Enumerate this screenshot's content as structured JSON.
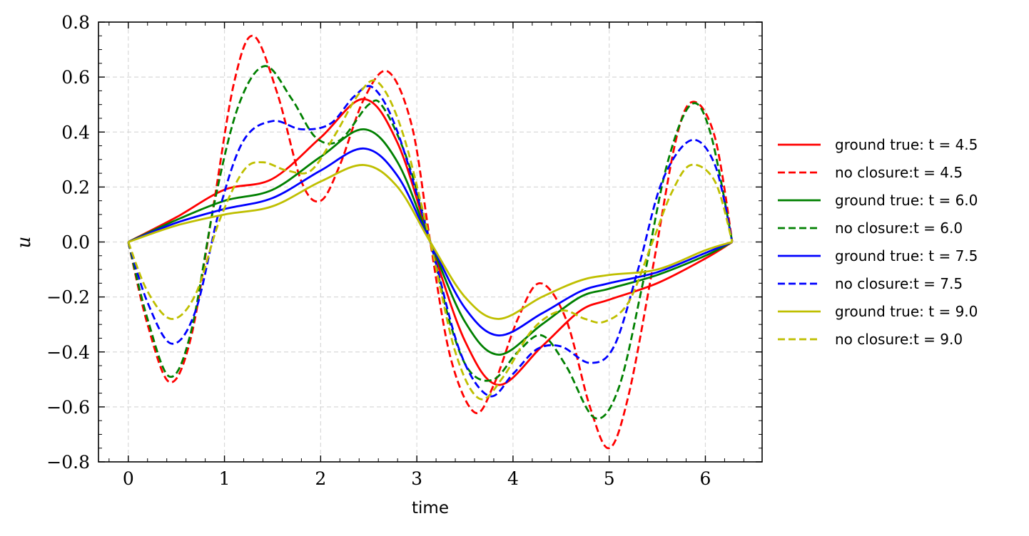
{
  "chart_data": {
    "type": "line",
    "xlabel": "time",
    "ylabel": "u",
    "xlim": [
      -0.31,
      6.59
    ],
    "ylim": [
      -0.8,
      0.8
    ],
    "xticks": [
      0,
      1,
      2,
      3,
      4,
      5,
      6
    ],
    "xtick_labels": [
      "0",
      "1",
      "2",
      "3",
      "4",
      "5",
      "6"
    ],
    "yticks": [
      -0.8,
      -0.6,
      -0.4,
      -0.2,
      0.0,
      0.2,
      0.4,
      0.6,
      0.8
    ],
    "ytick_labels": [
      "−0.8",
      "−0.6",
      "−0.4",
      "−0.2",
      "0.0",
      "0.2",
      "0.4",
      "0.6",
      "0.8"
    ],
    "grid": true,
    "legend_position": "right, outside plot",
    "series": [
      {
        "name": "ground true: t = 4.5",
        "color": "#ff0000",
        "dash": "solid",
        "x": [
          0,
          0.5,
          1.0,
          1.5,
          2.0,
          2.45,
          2.8,
          3.14,
          3.5,
          3.85,
          4.3,
          4.7,
          5.0,
          5.5,
          6.0,
          6.28
        ],
        "y": [
          0,
          0.09,
          0.19,
          0.23,
          0.38,
          0.52,
          0.36,
          0.0,
          -0.36,
          -0.52,
          -0.38,
          -0.25,
          -0.21,
          -0.15,
          -0.06,
          0
        ]
      },
      {
        "name": "no closure:t = 4.5",
        "color": "#ff0000",
        "dash": "dashed",
        "x": [
          0,
          0.2,
          0.43,
          0.65,
          0.88,
          1.1,
          1.3,
          1.55,
          1.8,
          2.0,
          2.2,
          2.45,
          2.7,
          2.95,
          3.14,
          3.35,
          3.6,
          3.8,
          4.05,
          4.28,
          4.55,
          4.8,
          5.0,
          5.2,
          5.45,
          5.7,
          5.88,
          6.1,
          6.28
        ],
        "y": [
          0,
          -0.3,
          -0.51,
          -0.35,
          0.12,
          0.58,
          0.75,
          0.54,
          0.22,
          0.15,
          0.28,
          0.52,
          0.62,
          0.42,
          0.0,
          -0.42,
          -0.62,
          -0.52,
          -0.28,
          -0.15,
          -0.28,
          -0.6,
          -0.75,
          -0.56,
          -0.1,
          0.38,
          0.51,
          0.38,
          0
        ]
      },
      {
        "name": "ground true: t = 6.0",
        "color": "#008000",
        "dash": "solid",
        "x": [
          0,
          0.5,
          1.0,
          1.5,
          2.0,
          2.45,
          2.8,
          3.14,
          3.5,
          3.85,
          4.3,
          4.7,
          5.0,
          5.5,
          6.0,
          6.28
        ],
        "y": [
          0,
          0.08,
          0.15,
          0.19,
          0.31,
          0.41,
          0.29,
          0.0,
          -0.29,
          -0.41,
          -0.3,
          -0.2,
          -0.17,
          -0.12,
          -0.05,
          0
        ]
      },
      {
        "name": "no closure:t = 6.0",
        "color": "#008000",
        "dash": "dashed",
        "x": [
          0,
          0.2,
          0.43,
          0.65,
          0.9,
          1.15,
          1.42,
          1.7,
          1.95,
          2.2,
          2.5,
          2.65,
          2.9,
          3.14,
          3.35,
          3.55,
          3.8,
          4.05,
          4.3,
          4.55,
          4.85,
          5.1,
          5.35,
          5.6,
          5.85,
          6.05,
          6.28
        ],
        "y": [
          0,
          -0.28,
          -0.49,
          -0.33,
          0.15,
          0.5,
          0.64,
          0.52,
          0.38,
          0.37,
          0.5,
          0.49,
          0.3,
          0.0,
          -0.3,
          -0.47,
          -0.5,
          -0.4,
          -0.34,
          -0.45,
          -0.64,
          -0.53,
          -0.15,
          0.28,
          0.5,
          0.4,
          0
        ]
      },
      {
        "name": "ground true: t = 7.5",
        "color": "#0000ff",
        "dash": "solid",
        "x": [
          0,
          0.5,
          1.0,
          1.5,
          2.0,
          2.45,
          2.8,
          3.14,
          3.5,
          3.85,
          4.3,
          4.7,
          5.0,
          5.5,
          6.0,
          6.28
        ],
        "y": [
          0,
          0.07,
          0.12,
          0.16,
          0.26,
          0.34,
          0.24,
          0.0,
          -0.24,
          -0.34,
          -0.26,
          -0.18,
          -0.15,
          -0.11,
          -0.04,
          0
        ]
      },
      {
        "name": "no closure:t = 7.5",
        "color": "#0000ff",
        "dash": "dashed",
        "x": [
          0,
          0.2,
          0.45,
          0.7,
          0.95,
          1.2,
          1.5,
          1.8,
          2.1,
          2.35,
          2.55,
          2.8,
          3.14,
          3.45,
          3.75,
          4.0,
          4.25,
          4.5,
          4.8,
          5.05,
          5.3,
          5.55,
          5.85,
          6.1,
          6.28
        ],
        "y": [
          0,
          -0.22,
          -0.37,
          -0.25,
          0.12,
          0.37,
          0.44,
          0.41,
          0.43,
          0.53,
          0.56,
          0.4,
          0.0,
          -0.4,
          -0.56,
          -0.48,
          -0.39,
          -0.38,
          -0.44,
          -0.38,
          -0.1,
          0.22,
          0.37,
          0.28,
          0
        ]
      },
      {
        "name": "ground true: t = 9.0",
        "color": "#bfbf00",
        "dash": "solid",
        "x": [
          0,
          0.5,
          1.0,
          1.5,
          2.0,
          2.45,
          2.8,
          3.14,
          3.5,
          3.85,
          4.3,
          4.7,
          5.0,
          5.5,
          6.0,
          6.28
        ],
        "y": [
          0,
          0.06,
          0.1,
          0.13,
          0.22,
          0.28,
          0.2,
          0.0,
          -0.2,
          -0.28,
          -0.2,
          -0.14,
          -0.12,
          -0.1,
          -0.03,
          0
        ]
      },
      {
        "name": "no closure:t = 9.0",
        "color": "#bfbf00",
        "dash": "dashed",
        "x": [
          0,
          0.2,
          0.45,
          0.7,
          0.95,
          1.2,
          1.4,
          1.65,
          1.9,
          2.15,
          2.4,
          2.6,
          2.85,
          3.14,
          3.4,
          3.65,
          3.9,
          4.2,
          4.5,
          4.75,
          4.95,
          5.2,
          5.45,
          5.65,
          5.85,
          6.1,
          6.28
        ],
        "y": [
          0,
          -0.18,
          -0.28,
          -0.19,
          0.08,
          0.26,
          0.29,
          0.26,
          0.26,
          0.39,
          0.54,
          0.58,
          0.4,
          0.0,
          -0.4,
          -0.57,
          -0.49,
          -0.32,
          -0.25,
          -0.28,
          -0.29,
          -0.22,
          0.0,
          0.18,
          0.28,
          0.22,
          0
        ]
      }
    ]
  }
}
